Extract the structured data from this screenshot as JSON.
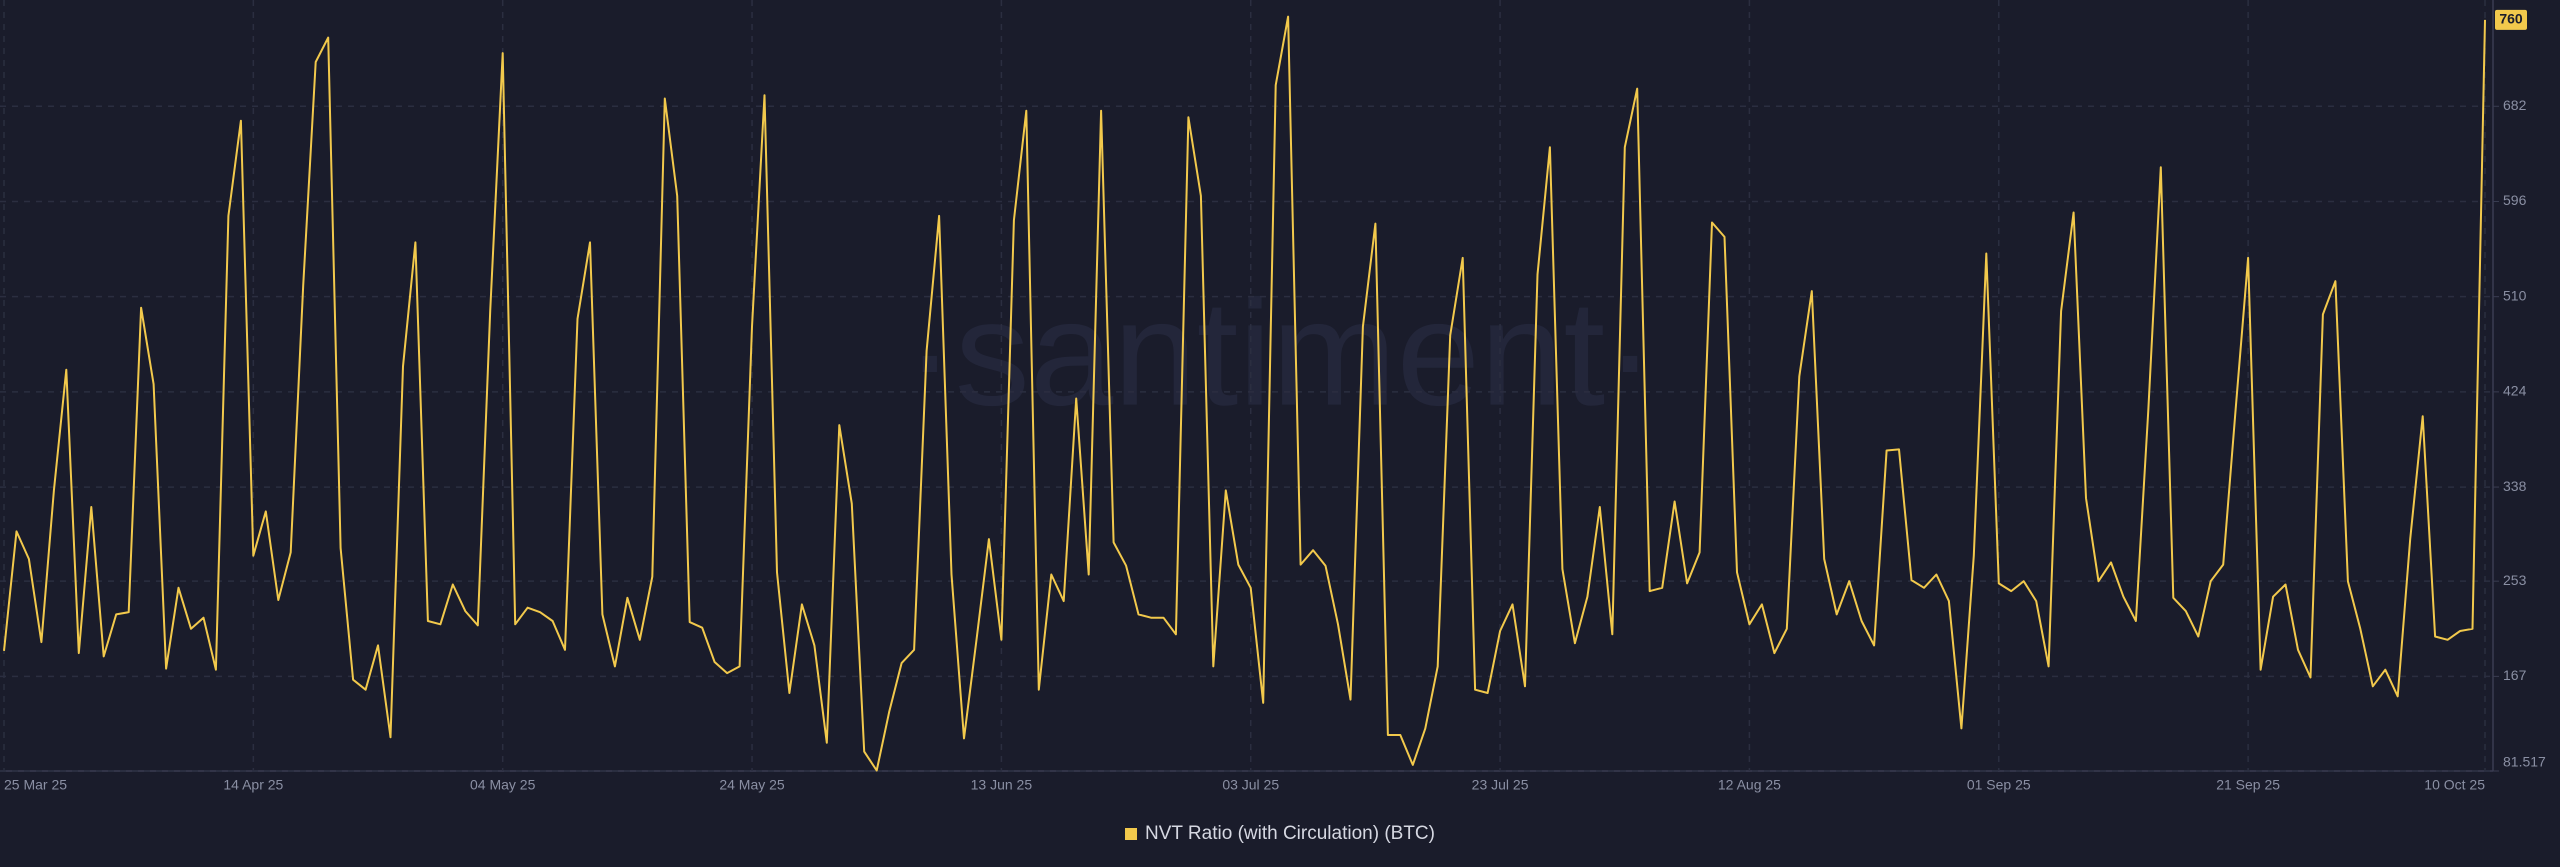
{
  "chart_data": {
    "type": "line",
    "watermark": "·santiment·",
    "x": [
      "2025-03-25",
      "2025-03-26",
      "2025-03-27",
      "2025-03-28",
      "2025-03-29",
      "2025-03-30",
      "2025-03-31",
      "2025-04-01",
      "2025-04-02",
      "2025-04-03",
      "2025-04-04",
      "2025-04-05",
      "2025-04-06",
      "2025-04-07",
      "2025-04-08",
      "2025-04-09",
      "2025-04-10",
      "2025-04-11",
      "2025-04-12",
      "2025-04-13",
      "2025-04-14",
      "2025-04-15",
      "2025-04-16",
      "2025-04-17",
      "2025-04-18",
      "2025-04-19",
      "2025-04-20",
      "2025-04-21",
      "2025-04-22",
      "2025-04-23",
      "2025-04-24",
      "2025-04-25",
      "2025-04-26",
      "2025-04-27",
      "2025-04-28",
      "2025-04-29",
      "2025-04-30",
      "2025-05-01",
      "2025-05-02",
      "2025-05-03",
      "2025-05-04",
      "2025-05-05",
      "2025-05-06",
      "2025-05-07",
      "2025-05-08",
      "2025-05-09",
      "2025-05-10",
      "2025-05-11",
      "2025-05-12",
      "2025-05-13",
      "2025-05-14",
      "2025-05-15",
      "2025-05-16",
      "2025-05-17",
      "2025-05-18",
      "2025-05-19",
      "2025-05-20",
      "2025-05-21",
      "2025-05-22",
      "2025-05-23",
      "2025-05-24",
      "2025-05-25",
      "2025-05-26",
      "2025-05-27",
      "2025-05-28",
      "2025-05-29",
      "2025-05-30",
      "2025-05-31",
      "2025-06-01",
      "2025-06-02",
      "2025-06-03",
      "2025-06-04",
      "2025-06-05",
      "2025-06-06",
      "2025-06-07",
      "2025-06-08",
      "2025-06-09",
      "2025-06-10",
      "2025-06-11",
      "2025-06-12",
      "2025-06-13",
      "2025-06-14",
      "2025-06-15",
      "2025-06-16",
      "2025-06-17",
      "2025-06-18",
      "2025-06-19",
      "2025-06-20",
      "2025-06-21",
      "2025-06-22",
      "2025-06-23",
      "2025-06-24",
      "2025-06-25",
      "2025-06-26",
      "2025-06-27",
      "2025-06-28",
      "2025-06-29",
      "2025-06-30",
      "2025-07-01",
      "2025-07-02",
      "2025-07-03",
      "2025-07-04",
      "2025-07-05",
      "2025-07-06",
      "2025-07-07",
      "2025-07-08",
      "2025-07-09",
      "2025-07-10",
      "2025-07-11",
      "2025-07-12",
      "2025-07-13",
      "2025-07-14",
      "2025-07-15",
      "2025-07-16",
      "2025-07-17",
      "2025-07-18",
      "2025-07-19",
      "2025-07-20",
      "2025-07-21",
      "2025-07-22",
      "2025-07-23",
      "2025-07-24",
      "2025-07-25",
      "2025-07-26",
      "2025-07-27",
      "2025-07-28",
      "2025-07-29",
      "2025-07-30",
      "2025-07-31",
      "2025-08-01",
      "2025-08-02",
      "2025-08-03",
      "2025-08-04",
      "2025-08-05",
      "2025-08-06",
      "2025-08-07",
      "2025-08-08",
      "2025-08-09",
      "2025-08-10",
      "2025-08-11",
      "2025-08-12",
      "2025-08-13",
      "2025-08-14",
      "2025-08-15",
      "2025-08-16",
      "2025-08-17",
      "2025-08-18",
      "2025-08-19",
      "2025-08-20",
      "2025-08-21",
      "2025-08-22",
      "2025-08-23",
      "2025-08-24",
      "2025-08-25",
      "2025-08-26",
      "2025-08-27",
      "2025-08-28",
      "2025-08-29",
      "2025-08-30",
      "2025-08-31",
      "2025-09-01",
      "2025-09-02",
      "2025-09-03",
      "2025-09-04",
      "2025-09-05",
      "2025-09-06",
      "2025-09-07",
      "2025-09-08",
      "2025-09-09",
      "2025-09-10",
      "2025-09-11",
      "2025-09-12",
      "2025-09-13",
      "2025-09-14",
      "2025-09-15",
      "2025-09-16",
      "2025-09-17",
      "2025-09-18",
      "2025-09-19",
      "2025-09-20",
      "2025-09-21",
      "2025-09-22",
      "2025-09-23",
      "2025-09-24",
      "2025-09-25",
      "2025-09-26",
      "2025-09-27",
      "2025-09-28",
      "2025-09-29",
      "2025-09-30",
      "2025-10-01",
      "2025-10-02",
      "2025-10-03",
      "2025-10-04",
      "2025-10-05",
      "2025-10-06",
      "2025-10-07",
      "2025-10-08",
      "2025-10-09",
      "2025-10-10"
    ],
    "series": [
      {
        "name": "NVT Ratio (with Circulation) (BTC)",
        "color": "#f2c94c",
        "values": [
          190,
          298,
          273,
          198,
          335,
          444,
          188,
          320,
          185,
          223,
          225,
          500,
          431,
          174,
          247,
          210,
          220,
          173,
          583,
          669,
          276,
          316,
          236,
          279,
          520,
          722,
          744,
          283,
          164,
          155,
          195,
          112,
          447,
          559,
          217,
          214,
          250,
          226,
          213,
          497,
          730,
          214,
          229,
          225,
          217,
          191,
          490,
          559,
          223,
          176,
          238,
          200,
          257,
          689,
          601,
          216,
          211,
          180,
          170,
          176,
          483,
          692,
          261,
          152,
          232,
          195,
          107,
          394,
          323,
          99,
          82,
          135,
          179,
          191,
          461,
          583,
          259,
          111,
          200,
          291,
          200,
          579,
          678,
          155,
          259,
          235,
          418,
          259,
          678,
          288,
          267,
          223,
          220,
          220,
          205,
          672,
          601,
          176,
          335,
          268,
          247,
          143,
          701,
          763,
          268,
          281,
          267,
          214,
          146,
          483,
          576,
          114,
          114,
          87,
          120,
          176,
          475,
          545,
          155,
          152,
          208,
          232,
          158,
          530,
          645,
          264,
          197,
          239,
          320,
          205,
          645,
          698,
          244,
          247,
          325,
          251,
          279,
          577,
          564,
          261,
          214,
          232,
          188,
          210,
          438,
          515,
          273,
          223,
          253,
          217,
          195,
          371,
          372,
          254,
          247,
          259,
          235,
          120,
          276,
          549,
          251,
          244,
          253,
          235,
          176,
          497,
          586,
          328,
          253,
          270,
          239,
          217,
          409,
          627,
          238,
          226,
          203,
          253,
          268,
          409,
          545,
          173,
          239,
          250,
          191,
          166,
          494,
          524,
          253,
          210,
          158,
          173,
          149,
          291,
          402,
          203,
          200,
          208,
          210,
          760
        ]
      }
    ],
    "xlim": [
      "2025-03-25",
      "2025-10-10"
    ],
    "xticks": [
      {
        "value": "2025-03-25",
        "label": "25 Mar 25"
      },
      {
        "value": "2025-04-14",
        "label": "14 Apr 25"
      },
      {
        "value": "2025-05-04",
        "label": "04 May 25"
      },
      {
        "value": "2025-05-24",
        "label": "24 May 25"
      },
      {
        "value": "2025-06-13",
        "label": "13 Jun 25"
      },
      {
        "value": "2025-07-03",
        "label": "03 Jul 25"
      },
      {
        "value": "2025-07-23",
        "label": "23 Jul 25"
      },
      {
        "value": "2025-08-12",
        "label": "12 Aug 25"
      },
      {
        "value": "2025-09-01",
        "label": "01 Sep 25"
      },
      {
        "value": "2025-09-21",
        "label": "21 Sep 25"
      },
      {
        "value": "2025-10-10",
        "label": "10 Oct 25"
      }
    ],
    "ylim": [
      81.517,
      778
    ],
    "yticks": [
      81.517,
      167,
      253,
      338,
      424,
      510,
      596,
      682
    ],
    "grid": true,
    "legend": "bottom"
  }
}
